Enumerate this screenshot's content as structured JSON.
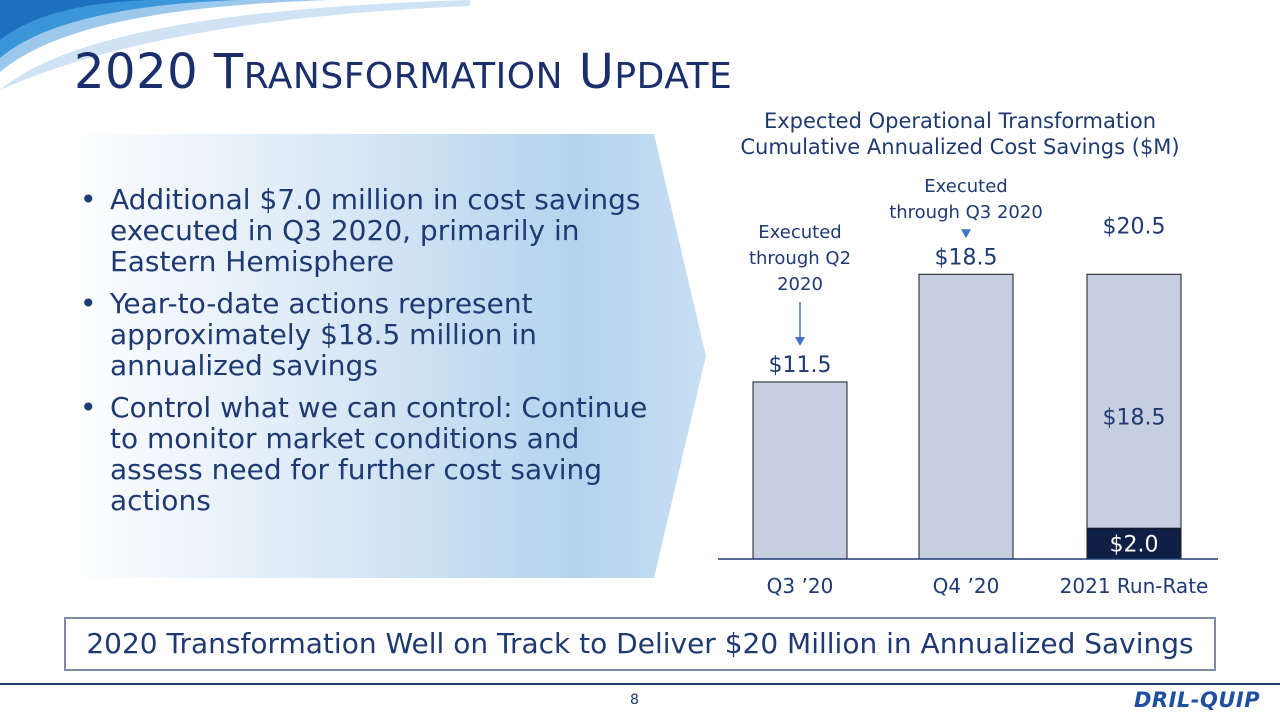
{
  "slide": {
    "title_first": "2020 T",
    "title_sc1": "RANSFORMATION",
    "title_mid": " U",
    "title_sc2": "PDATE",
    "bullets": [
      "Additional $7.0 million in cost savings executed in Q3 2020, primarily in Eastern Hemisphere",
      "Year-to-date actions represent approximately $18.5 million in annualized savings",
      "Control what we can control: Continue to monitor market conditions and assess need for further cost saving actions"
    ],
    "banner": "2020 Transformation Well on Track to Deliver $20 Million in Annualized Savings",
    "page_number": "8",
    "logo_text": "DRIL-QUIP"
  },
  "chart_data": {
    "type": "bar",
    "title_line1": "Expected Operational Transformation",
    "title_line2": "Cumulative Annualized Cost Savings ($M)",
    "categories": [
      "Q3 ’20",
      "Q4 ’20",
      "2021 Run-Rate"
    ],
    "series": [
      {
        "values": [
          11.5,
          18.5,
          18.5
        ],
        "labels": [
          "$11.5",
          "$18.5",
          "$18.5"
        ],
        "color": "#c5cfe1"
      },
      {
        "values": [
          0,
          0,
          2.0
        ],
        "labels": [
          "",
          "",
          "$2.0"
        ],
        "color": "#0f1f45"
      }
    ],
    "totals": [
      11.5,
      18.5,
      20.5
    ],
    "total_labels": [
      "",
      "",
      "$20.5"
    ],
    "annotations": [
      {
        "category": 0,
        "lines": [
          "Executed",
          "through Q2",
          "2020"
        ]
      },
      {
        "category": 1,
        "lines": [
          "Executed",
          "through Q3 2020"
        ]
      }
    ],
    "ylim": [
      0,
      23
    ],
    "grid": false,
    "colors": {
      "arrow": "#4472c4",
      "axis": "#1f3a72"
    }
  }
}
